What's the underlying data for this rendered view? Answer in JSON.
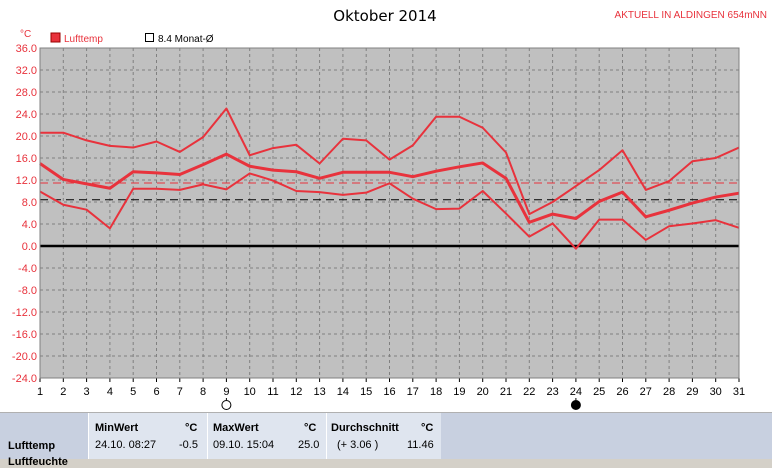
{
  "chart_data": {
    "type": "line",
    "title": "Oktober 2014",
    "subtitle": "AKTUELL IN ALDINGEN 654mNN",
    "ylabel": "°C",
    "xlabel": "",
    "ylim": [
      -24,
      36
    ],
    "y_ticks": [
      "36.0",
      "32.0",
      "28.0",
      "24.0",
      "20.0",
      "16.0",
      "12.0",
      "8.0",
      "4.0",
      "0.0",
      "-4.0",
      "-8.0",
      "-12.0",
      "-16.0",
      "-20.0",
      "-24.0"
    ],
    "x": [
      1,
      2,
      3,
      4,
      5,
      6,
      7,
      8,
      9,
      10,
      11,
      12,
      13,
      14,
      15,
      16,
      17,
      18,
      19,
      20,
      21,
      22,
      23,
      24,
      25,
      26,
      27,
      28,
      29,
      30,
      31
    ],
    "grid": true,
    "legend_position": "top-left",
    "legend": [
      {
        "name": "Lufttemp",
        "color": "#e8323c",
        "marker": "filled-square"
      },
      {
        "name": "8.4 Monat-Ø",
        "color": "#000000",
        "marker": "open-square"
      }
    ],
    "series": [
      {
        "role": "max",
        "color": "#e8323c",
        "values": [
          20.6,
          20.6,
          19.2,
          18.2,
          17.9,
          19.0,
          17.1,
          19.8,
          25.0,
          16.5,
          17.8,
          18.4,
          15.0,
          19.5,
          19.2,
          15.7,
          18.3,
          23.5,
          23.5,
          21.5,
          17.0,
          5.8,
          8.0,
          10.9,
          13.8,
          17.4,
          10.2,
          11.8,
          15.4,
          16.0,
          17.9
        ]
      },
      {
        "role": "avg",
        "color": "#e8323c",
        "values": [
          15.0,
          12.1,
          11.3,
          10.5,
          13.5,
          13.3,
          13.0,
          14.8,
          16.7,
          14.5,
          13.8,
          13.5,
          12.3,
          13.4,
          13.4,
          13.4,
          12.6,
          13.6,
          14.4,
          15.1,
          12.3,
          4.3,
          5.8,
          5.0,
          8.1,
          9.8,
          5.3,
          6.5,
          7.8,
          8.9,
          9.6
        ]
      },
      {
        "role": "min",
        "color": "#e8323c",
        "values": [
          9.9,
          7.5,
          6.6,
          3.2,
          10.4,
          10.4,
          10.2,
          11.2,
          10.3,
          13.2,
          11.9,
          10.0,
          9.8,
          9.3,
          9.7,
          11.4,
          8.6,
          6.7,
          6.8,
          10.0,
          5.9,
          1.7,
          4.1,
          -0.5,
          4.8,
          4.8,
          1.1,
          3.6,
          4.1,
          4.7,
          3.3
        ]
      }
    ],
    "reference_lines": [
      {
        "value": 8.4,
        "color": "#000000",
        "style": "dashed"
      },
      {
        "value": 11.46,
        "color": "#e8323c",
        "style": "dashed"
      }
    ],
    "markers": [
      {
        "day": 9,
        "label": "full-moon-icon"
      },
      {
        "day": 24,
        "label": "new-moon-icon"
      }
    ]
  },
  "stats": {
    "row_label": "Lufttemp",
    "row_label_2": "Luftfeuchte",
    "min": {
      "header": "MinWert",
      "unit": "°C",
      "when": "24.10.  08:27",
      "value": "-0.5"
    },
    "max": {
      "header": "MaxWert",
      "unit": "°C",
      "when": "09.10.  15:04",
      "value": "25.0"
    },
    "avg": {
      "header": "Durchschnitt",
      "unit": "°C",
      "when": "(+ 3.06 )",
      "value": "11.46"
    }
  }
}
